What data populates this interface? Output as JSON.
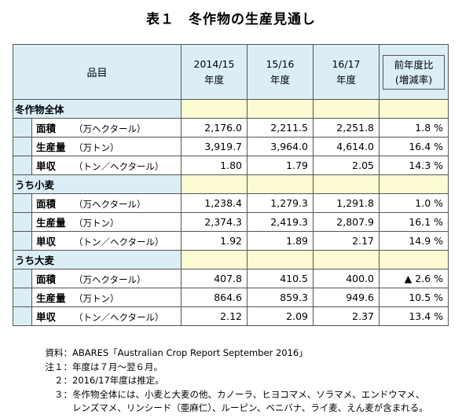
{
  "title": "表１　冬作物の生産見通し",
  "header": {
    "item": "品目",
    "cols": [
      {
        "year": "2014/15",
        "suffix": "年度"
      },
      {
        "year": "15/16",
        "suffix": "年度"
      },
      {
        "year": "16/17",
        "suffix": "年度"
      }
    ],
    "ratio_line1": "前年度比",
    "ratio_line2": "(増減率)"
  },
  "groups": [
    {
      "name": "冬作物全体",
      "rows": [
        {
          "name": "面積",
          "unit": "（万ヘクタール）",
          "v1": "2,176.0",
          "v2": "2,211.5",
          "v3": "2,251.8",
          "ratio": "1.8 %"
        },
        {
          "name": "生産量",
          "unit": "（万トン）",
          "v1": "3,919.7",
          "v2": "3,964.0",
          "v3": "4,614.0",
          "ratio": "16.4 %"
        },
        {
          "name": "単収",
          "unit": "（トン／ヘクタール）",
          "v1": "1.80",
          "v2": "1.79",
          "v3": "2.05",
          "ratio": "14.3 %"
        }
      ]
    },
    {
      "name": "うち小麦",
      "rows": [
        {
          "name": "面積",
          "unit": "（万ヘクタール）",
          "v1": "1,238.4",
          "v2": "1,279.3",
          "v3": "1,291.8",
          "ratio": "1.0 %"
        },
        {
          "name": "生産量",
          "unit": "（万トン）",
          "v1": "2,374.3",
          "v2": "2,419.3",
          "v3": "2,807.9",
          "ratio": "16.1 %"
        },
        {
          "name": "単収",
          "unit": "（トン／ヘクタール）",
          "v1": "1.92",
          "v2": "1.89",
          "v3": "2.17",
          "ratio": "14.9 %"
        }
      ]
    },
    {
      "name": "うち大麦",
      "rows": [
        {
          "name": "面積",
          "unit": "（万ヘクタール）",
          "v1": "407.8",
          "v2": "410.5",
          "v3": "400.0",
          "ratio": "▲ 2.6 %"
        },
        {
          "name": "生産量",
          "unit": "（万トン）",
          "v1": "864.6",
          "v2": "859.3",
          "v3": "949.6",
          "ratio": "10.5 %"
        },
        {
          "name": "単収",
          "unit": "（トン／ヘクタール）",
          "v1": "2.12",
          "v2": "2.09",
          "v3": "2.37",
          "ratio": "13.4 %"
        }
      ]
    }
  ],
  "notes": {
    "source_label": "資料：",
    "source_text": "ABARES「Australian Crop Report September 2016」",
    "note1_label": "注１：",
    "note1_text": "年度は７月～翌６月。",
    "note2_label": "２：",
    "note2_text": "2016/17年度は推定。",
    "note3_label": "３：",
    "note3_text": "冬作物全体には、小麦と大麦の他、カノーラ、ヒヨコマメ、ソラマメ、エンドウマメ、",
    "note3_cont": "レンズマメ、リンシード（亜麻仁）、ルーピン、ベニバナ、ライ麦、えん麦が含まれる。"
  }
}
